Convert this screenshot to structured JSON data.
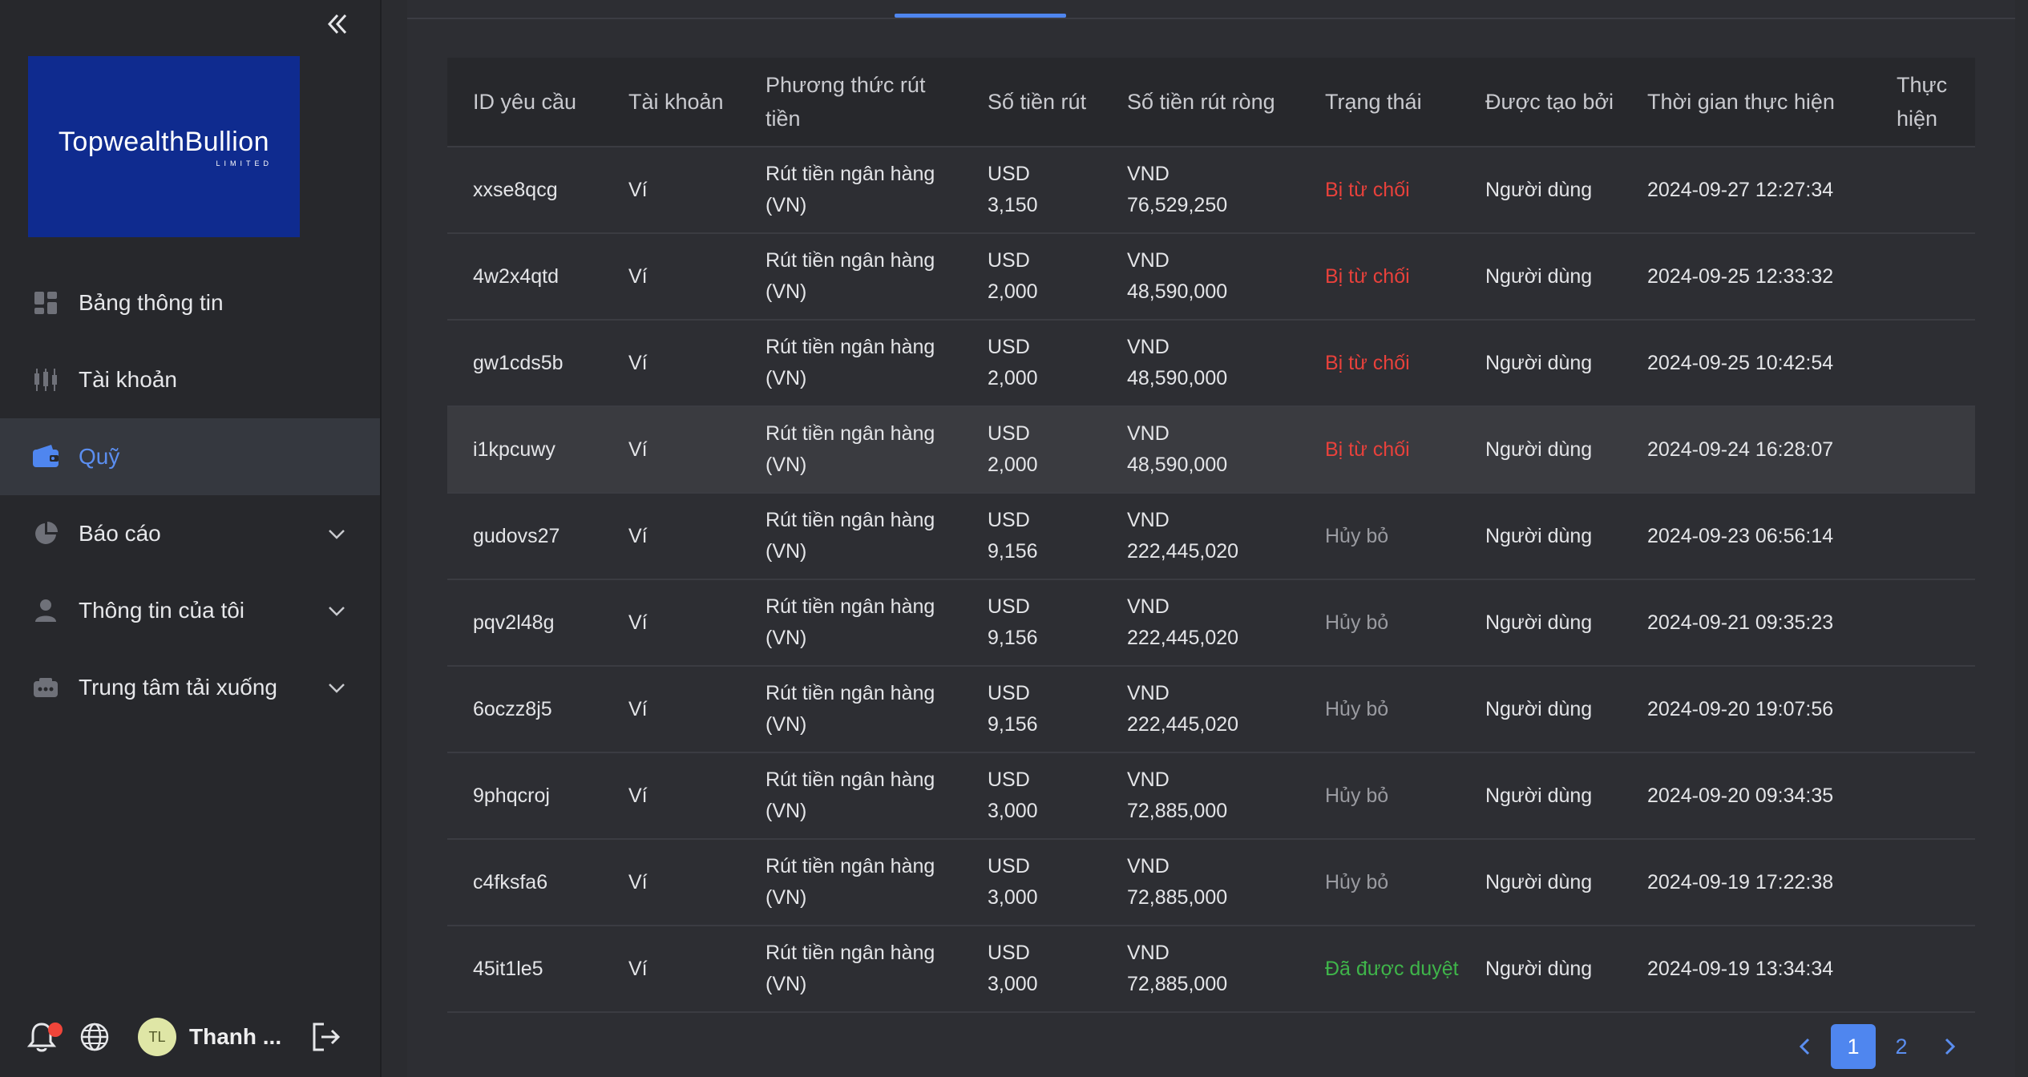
{
  "sidebar": {
    "logo": {
      "brand": "TopwealthBullion",
      "sub": "LIMITED"
    },
    "items": [
      {
        "label": "Bảng thông tin",
        "icon": "dashboard-icon",
        "active": false,
        "expandable": false
      },
      {
        "label": "Tài khoản",
        "icon": "candlestick-icon",
        "active": false,
        "expandable": false
      },
      {
        "label": "Quỹ",
        "icon": "wallet-icon",
        "active": true,
        "expandable": false
      },
      {
        "label": "Báo cáo",
        "icon": "pie-chart-icon",
        "active": false,
        "expandable": true
      },
      {
        "label": "Thông tin của tôi",
        "icon": "user-icon",
        "active": false,
        "expandable": true
      },
      {
        "label": "Trung tâm tải xuống",
        "icon": "download-box-icon",
        "active": false,
        "expandable": true
      }
    ],
    "footer": {
      "avatar_initials": "TL",
      "username": "Thanh ..."
    }
  },
  "table": {
    "headers": [
      "ID yêu cầu",
      "Tài khoản",
      "Phương thức rút tiền",
      "Số tiền rút",
      "Số tiền rút ròng",
      "Trạng thái",
      "Được tạo bởi",
      "Thời gian thực hiện",
      "Thực hiện"
    ],
    "rows": [
      {
        "id": "xxse8qcg",
        "account": "Ví",
        "method": "Rút tiền ngân hàng (VN)",
        "amount_cur": "USD",
        "amount": "3,150",
        "net_cur": "VND",
        "net": "76,529,250",
        "status": "Bị từ chối",
        "status_type": "rejected",
        "created_by": "Người dùng",
        "time": "2024-09-27 12:27:34",
        "action": ""
      },
      {
        "id": "4w2x4qtd",
        "account": "Ví",
        "method": "Rút tiền ngân hàng (VN)",
        "amount_cur": "USD",
        "amount": "2,000",
        "net_cur": "VND",
        "net": "48,590,000",
        "status": "Bị từ chối",
        "status_type": "rejected",
        "created_by": "Người dùng",
        "time": "2024-09-25 12:33:32",
        "action": ""
      },
      {
        "id": "gw1cds5b",
        "account": "Ví",
        "method": "Rút tiền ngân hàng (VN)",
        "amount_cur": "USD",
        "amount": "2,000",
        "net_cur": "VND",
        "net": "48,590,000",
        "status": "Bị từ chối",
        "status_type": "rejected",
        "created_by": "Người dùng",
        "time": "2024-09-25 10:42:54",
        "action": ""
      },
      {
        "id": "i1kpcuwy",
        "account": "Ví",
        "method": "Rút tiền ngân hàng (VN)",
        "amount_cur": "USD",
        "amount": "2,000",
        "net_cur": "VND",
        "net": "48,590,000",
        "status": "Bị từ chối",
        "status_type": "rejected",
        "created_by": "Người dùng",
        "time": "2024-09-24 16:28:07",
        "action": ""
      },
      {
        "id": "gudovs27",
        "account": "Ví",
        "method": "Rút tiền ngân hàng (VN)",
        "amount_cur": "USD",
        "amount": "9,156",
        "net_cur": "VND",
        "net": "222,445,020",
        "status": "Hủy bỏ",
        "status_type": "cancel",
        "created_by": "Người dùng",
        "time": "2024-09-23 06:56:14",
        "action": ""
      },
      {
        "id": "pqv2l48g",
        "account": "Ví",
        "method": "Rút tiền ngân hàng (VN)",
        "amount_cur": "USD",
        "amount": "9,156",
        "net_cur": "VND",
        "net": "222,445,020",
        "status": "Hủy bỏ",
        "status_type": "cancel",
        "created_by": "Người dùng",
        "time": "2024-09-21 09:35:23",
        "action": ""
      },
      {
        "id": "6oczz8j5",
        "account": "Ví",
        "method": "Rút tiền ngân hàng (VN)",
        "amount_cur": "USD",
        "amount": "9,156",
        "net_cur": "VND",
        "net": "222,445,020",
        "status": "Hủy bỏ",
        "status_type": "cancel",
        "created_by": "Người dùng",
        "time": "2024-09-20 19:07:56",
        "action": ""
      },
      {
        "id": "9phqcroj",
        "account": "Ví",
        "method": "Rút tiền ngân hàng (VN)",
        "amount_cur": "USD",
        "amount": "3,000",
        "net_cur": "VND",
        "net": "72,885,000",
        "status": "Hủy bỏ",
        "status_type": "cancel",
        "created_by": "Người dùng",
        "time": "2024-09-20 09:34:35",
        "action": ""
      },
      {
        "id": "c4fksfa6",
        "account": "Ví",
        "method": "Rút tiền ngân hàng (VN)",
        "amount_cur": "USD",
        "amount": "3,000",
        "net_cur": "VND",
        "net": "72,885,000",
        "status": "Hủy bỏ",
        "status_type": "cancel",
        "created_by": "Người dùng",
        "time": "2024-09-19 17:22:38",
        "action": ""
      },
      {
        "id": "45it1le5",
        "account": "Ví",
        "method": "Rút tiền ngân hàng (VN)",
        "amount_cur": "USD",
        "amount": "3,000",
        "net_cur": "VND",
        "net": "72,885,000",
        "status": "Đã được duyệt",
        "status_type": "approved",
        "created_by": "Người dùng",
        "time": "2024-09-19 13:34:34",
        "action": ""
      }
    ],
    "highlighted_row": 3
  },
  "pagination": {
    "pages": [
      "1",
      "2"
    ],
    "current": "1"
  },
  "colors": {
    "accent": "#4f86ef",
    "rejected": "#e8413b",
    "cancel": "#9a9ba1",
    "approved": "#3fb54a",
    "logo_bg": "#0f2b8f"
  }
}
